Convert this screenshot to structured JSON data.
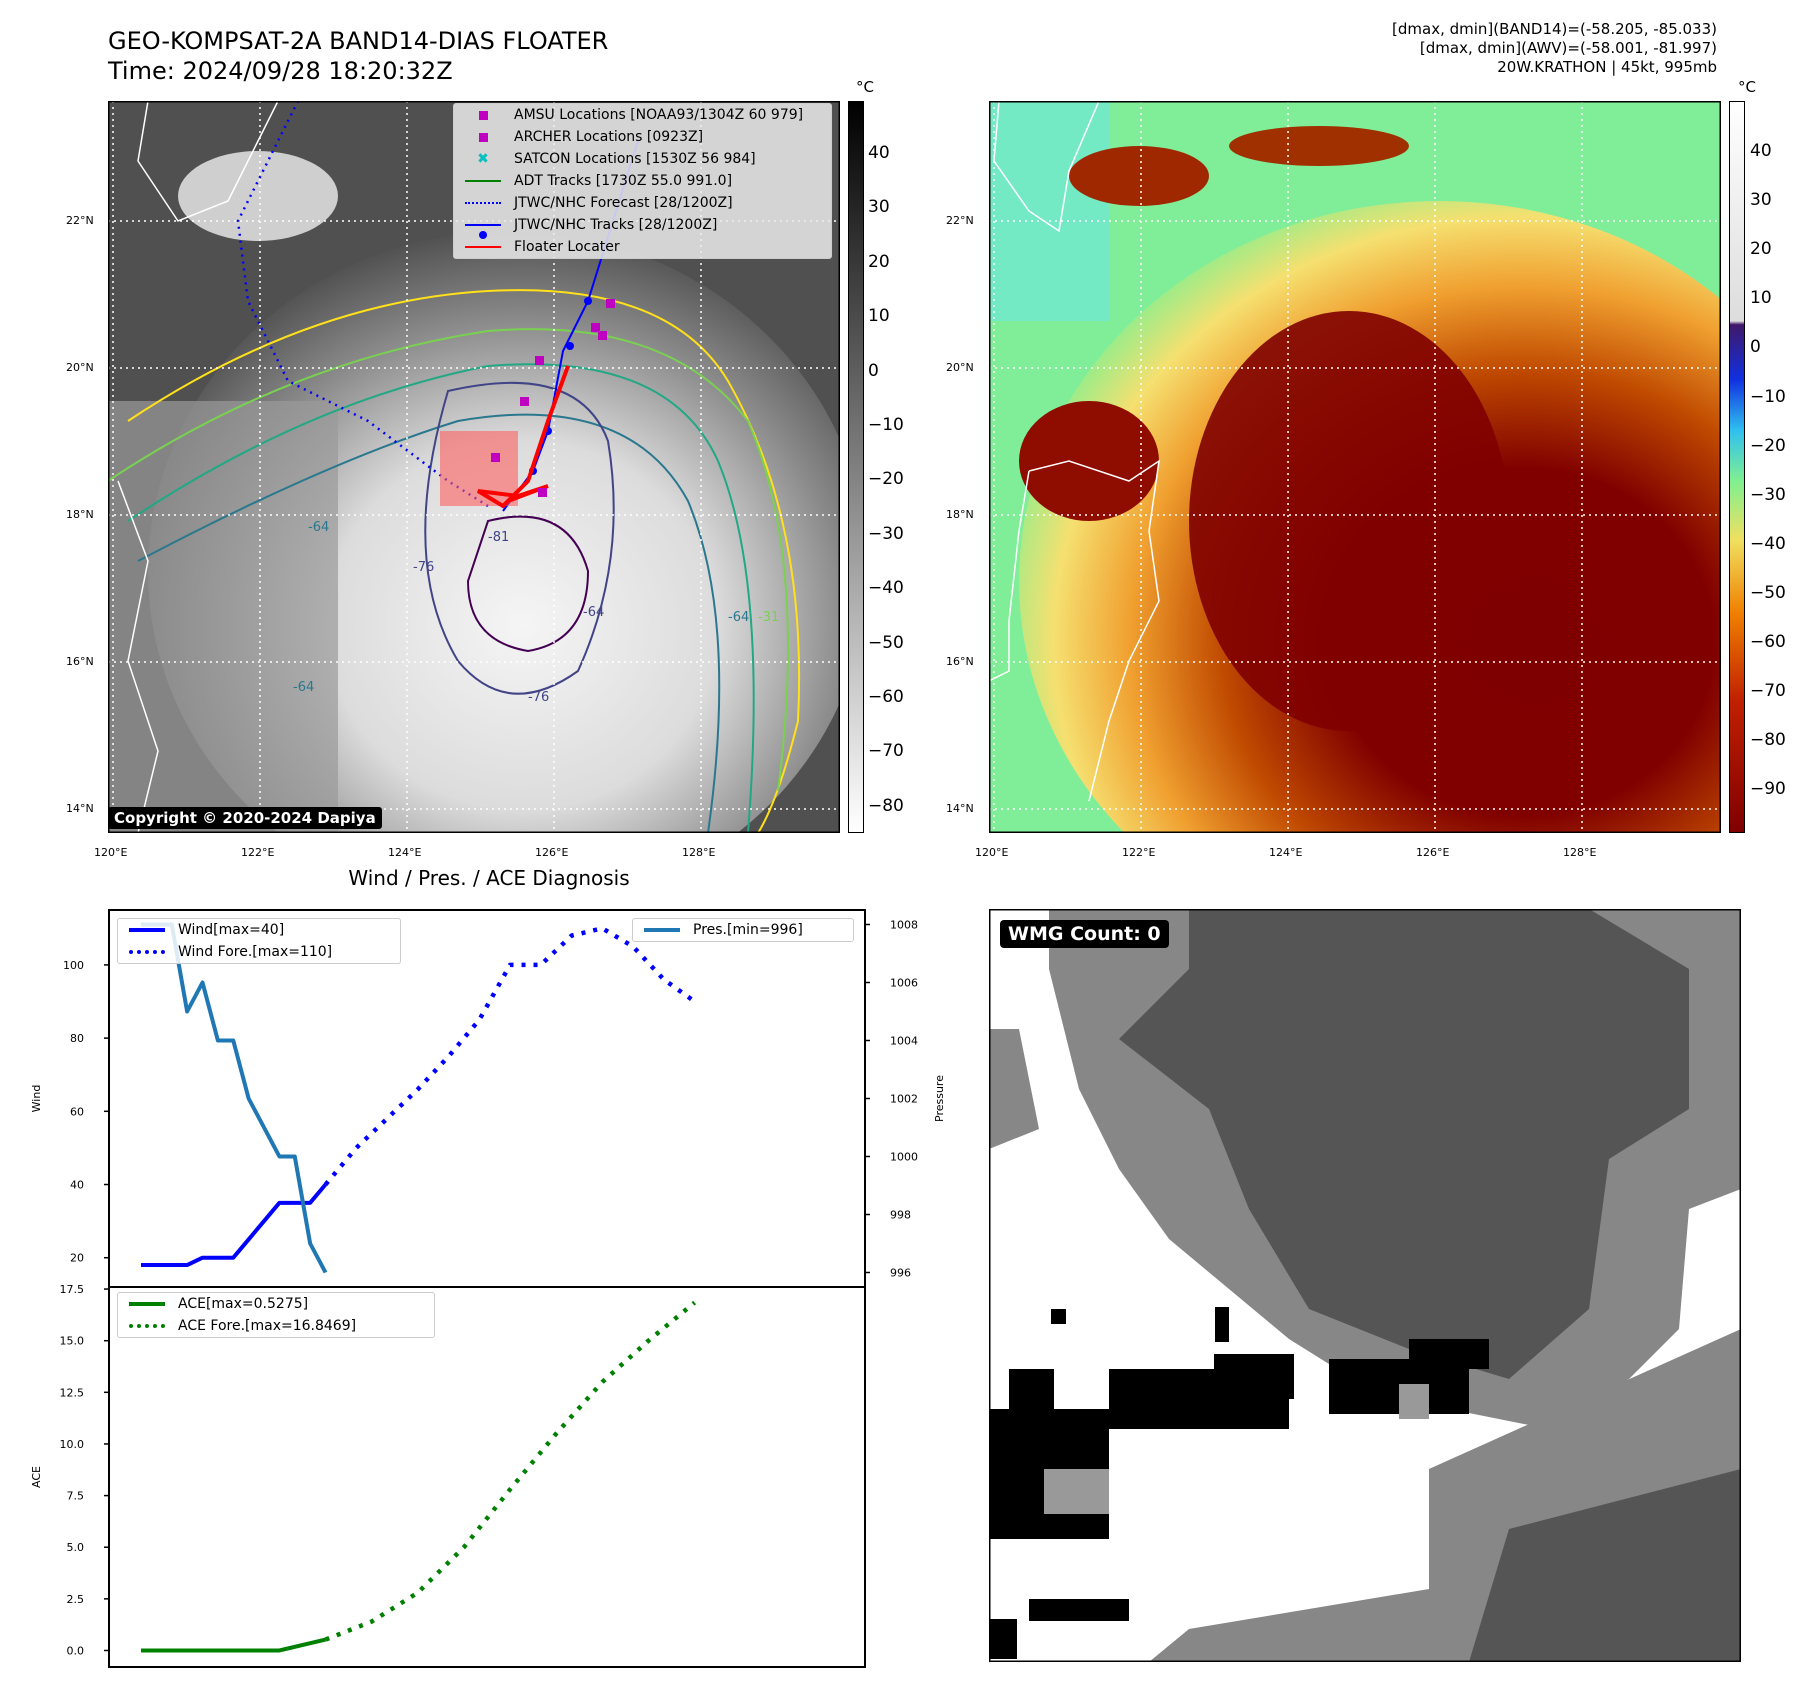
{
  "header": {
    "title_line1": "GEO-KOMPSAT-2A BAND14-DIAS FLOATER",
    "title_line2": "Time: 2024/09/28 18:20:32Z",
    "info_line1": "[dmax, dmin](BAND14)=(-58.205, -85.033)",
    "info_line2": "[dmax, dmin](AWV)=(-58.001, -81.997)",
    "info_line3": "20W.KRATHON | 45kt, 995mb"
  },
  "map_left": {
    "lat_labels": [
      "22°N",
      "20°N",
      "18°N",
      "16°N",
      "14°N"
    ],
    "lon_labels": [
      "120°E",
      "122°E",
      "124°E",
      "126°E",
      "128°E"
    ],
    "colorbar_unit": "°C",
    "colorbar_ticks": [
      "40",
      "30",
      "20",
      "10",
      "0",
      "−10",
      "−20",
      "−30",
      "−40",
      "−50",
      "−60",
      "−70",
      "−80"
    ],
    "contour_labels": [
      "-64",
      "-64",
      "-64",
      "-76",
      "-76",
      "-81",
      "-64",
      "-31"
    ],
    "legend": [
      {
        "label": "AMSU Locations [NOAA93/1304Z 60 979]",
        "symbol": "square",
        "color": "#c000c0"
      },
      {
        "label": "ARCHER Locations [0923Z]",
        "symbol": "square",
        "color": "#c000c0"
      },
      {
        "label": "SATCON Locations [1530Z 56 984]",
        "symbol": "x",
        "color": "#00c0c0"
      },
      {
        "label": "ADT Tracks [1730Z 55.0 991.0]",
        "symbol": "line",
        "color": "#008000"
      },
      {
        "label": "JTWC/NHC Forecast [28/1200Z]",
        "symbol": "dotted",
        "color": "#0000ff"
      },
      {
        "label": "JTWC/NHC Tracks [28/1200Z]",
        "symbol": "line-dot",
        "color": "#0000ff"
      },
      {
        "label": "Floater Locater",
        "symbol": "line",
        "color": "#ff0000"
      }
    ],
    "copyright": "Copyright © 2020-2024 Dapiya"
  },
  "map_right": {
    "lat_labels": [
      "22°N",
      "20°N",
      "18°N",
      "16°N",
      "14°N"
    ],
    "lon_labels": [
      "120°E",
      "122°E",
      "124°E",
      "126°E",
      "128°E"
    ],
    "colorbar_unit": "°C",
    "colorbar_ticks": [
      "40",
      "30",
      "20",
      "10",
      "0",
      "−10",
      "−20",
      "−30",
      "−40",
      "−50",
      "−60",
      "−70",
      "−80",
      "−90"
    ]
  },
  "wmg_panel": {
    "badge": "WMG Count: 0"
  },
  "chart_data": [
    {
      "type": "line",
      "title": "Wind / Pres. / ACE Diagnosis",
      "ylabel": "Wind",
      "ylabel_right": "Pressure",
      "ylim": [
        12,
        115
      ],
      "ylim_right": [
        995.5,
        1008.5
      ],
      "yticks": [
        "20",
        "40",
        "60",
        "80",
        "100"
      ],
      "yticks_right": [
        "996",
        "998",
        "1000",
        "1002",
        "1004",
        "1006",
        "1008"
      ],
      "x": [
        0,
        1,
        2,
        3,
        4,
        5,
        6,
        7,
        8,
        9,
        10,
        11,
        12,
        13,
        14,
        15,
        16,
        17,
        18,
        19,
        20,
        21,
        22,
        23,
        24,
        25,
        26,
        27,
        28,
        29,
        30,
        31,
        32,
        33,
        34,
        35,
        36,
        37,
        38,
        39,
        40,
        41,
        42,
        43,
        44,
        45
      ],
      "series": [
        {
          "name": "Wind[max=40]",
          "axis": "left",
          "style": "solid",
          "color": "#0000ff",
          "x": [
            0,
            3,
            4,
            6,
            9,
            10,
            11,
            12
          ],
          "values": [
            18,
            18,
            20,
            20,
            35,
            35,
            35,
            40
          ]
        },
        {
          "name": "Wind Fore.[max=110]",
          "axis": "left",
          "style": "dotted",
          "color": "#0000ff",
          "x": [
            12,
            14,
            16,
            18,
            20,
            22,
            24,
            26,
            28,
            30,
            32,
            34,
            36
          ],
          "values": [
            40,
            50,
            58,
            66,
            75,
            85,
            100,
            100,
            108,
            110,
            105,
            96,
            90
          ]
        },
        {
          "name": "Pres.[min=996]",
          "axis": "right",
          "style": "solid",
          "color": "#1f77b4",
          "x": [
            0,
            2,
            3,
            4,
            5,
            6,
            7,
            8,
            9,
            10,
            11,
            12
          ],
          "values": [
            1008,
            1008,
            1005,
            1006,
            1004,
            1004,
            1002,
            1001,
            1000,
            1000,
            997,
            996
          ]
        }
      ],
      "legend_left": [
        "Wind[max=40]",
        "Wind Fore.[max=110]"
      ],
      "legend_right": [
        "Pres.[min=996]"
      ]
    },
    {
      "type": "line",
      "ylabel": "ACE",
      "ylim": [
        -0.8,
        17.6
      ],
      "yticks": [
        "0.0",
        "2.5",
        "5.0",
        "7.5",
        "10.0",
        "12.5",
        "15.0",
        "17.5"
      ],
      "series": [
        {
          "name": "ACE[max=0.5275]",
          "style": "solid",
          "color": "#008000",
          "x": [
            0,
            3,
            6,
            9,
            12
          ],
          "values": [
            0,
            0,
            0,
            0,
            0.5275
          ]
        },
        {
          "name": "ACE Fore.[max=16.8469]",
          "style": "dotted",
          "color": "#008000",
          "x": [
            12,
            15,
            18,
            21,
            24,
            27,
            30,
            33,
            36
          ],
          "values": [
            0.5275,
            1.4,
            2.8,
            5.0,
            7.8,
            10.5,
            13.0,
            15.0,
            16.8469
          ]
        }
      ],
      "legend": [
        "ACE[max=0.5275]",
        "ACE Fore.[max=16.8469]"
      ]
    }
  ],
  "colors": {
    "wind": "#0000ff",
    "pressure": "#1f77b4",
    "ace": "#008000",
    "amsu": "#c000c0",
    "satcon": "#00c0c0",
    "floater": "#ff0000"
  }
}
